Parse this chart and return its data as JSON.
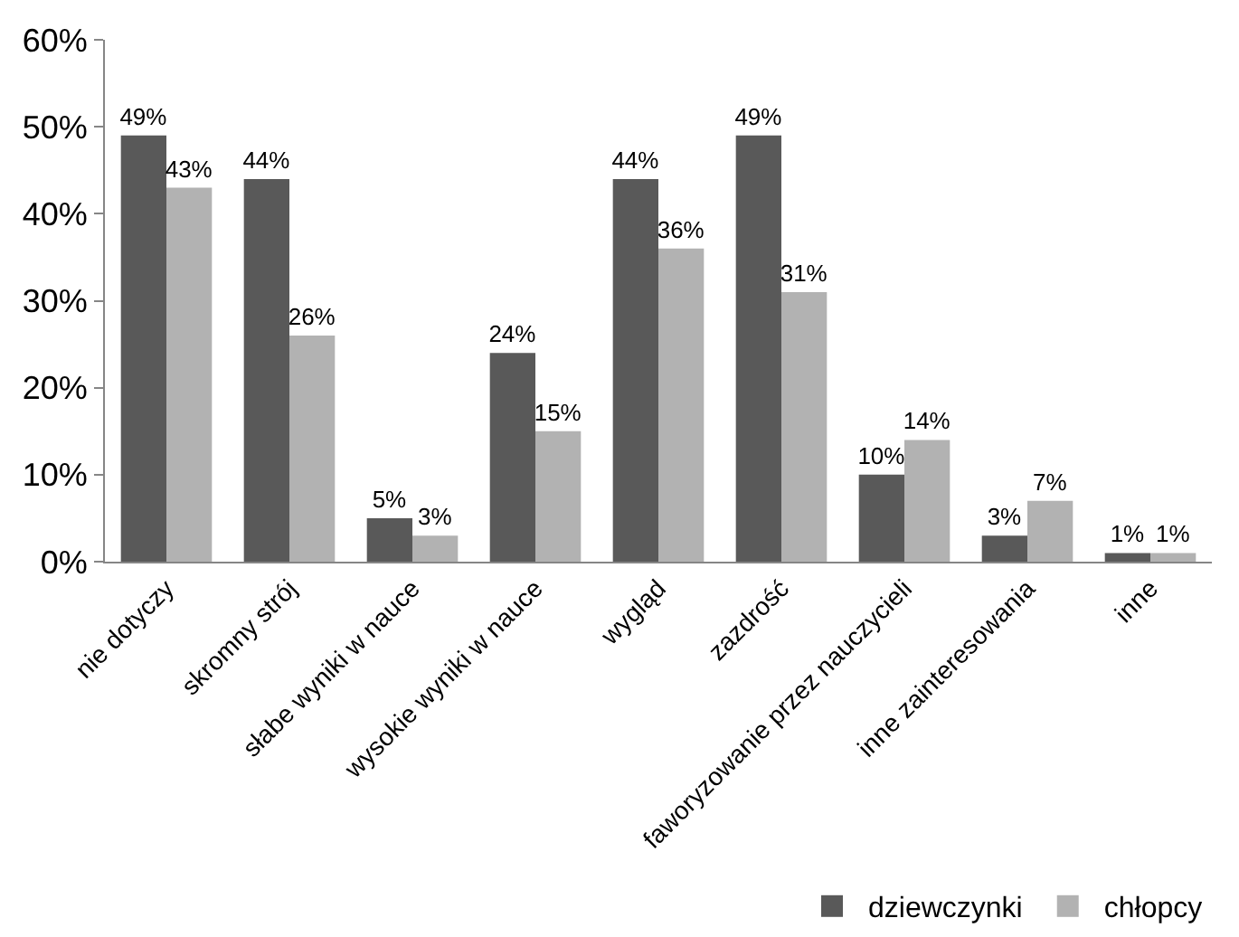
{
  "chart_data": {
    "type": "bar",
    "categories": [
      "nie dotyczy",
      "skromny strój",
      "słabe wyniki w nauce",
      "wysokie wyniki w nauce",
      "wygląd",
      "zazdrość",
      "faworyzowanie przez nauczycieli",
      "inne zainteresowania",
      "inne"
    ],
    "series": [
      {
        "name": "dziewczynki",
        "color": "#595959",
        "values": [
          49,
          44,
          5,
          24,
          44,
          49,
          10,
          3,
          1
        ],
        "value_labels": [
          "49%",
          "44%",
          "5%",
          "24%",
          "44%",
          "49%",
          "10%",
          "3%",
          "1%"
        ]
      },
      {
        "name": "chłopcy",
        "color": "#b2b2b2",
        "values": [
          43,
          26,
          3,
          15,
          36,
          31,
          14,
          7,
          1
        ],
        "value_labels": [
          "43%",
          "26%",
          "3%",
          "15%",
          "36%",
          "31%",
          "14%",
          "7%",
          "1%"
        ]
      }
    ],
    "ylim": [
      0,
      60
    ],
    "yticks": [
      {
        "value": 0,
        "label": "0%"
      },
      {
        "value": 10,
        "label": "10%"
      },
      {
        "value": 20,
        "label": "20%"
      },
      {
        "value": 30,
        "label": "30%"
      },
      {
        "value": 40,
        "label": "40%"
      },
      {
        "value": 50,
        "label": "50%"
      },
      {
        "value": 60,
        "label": "60%"
      }
    ],
    "grid": false,
    "legend": "bottom right"
  }
}
